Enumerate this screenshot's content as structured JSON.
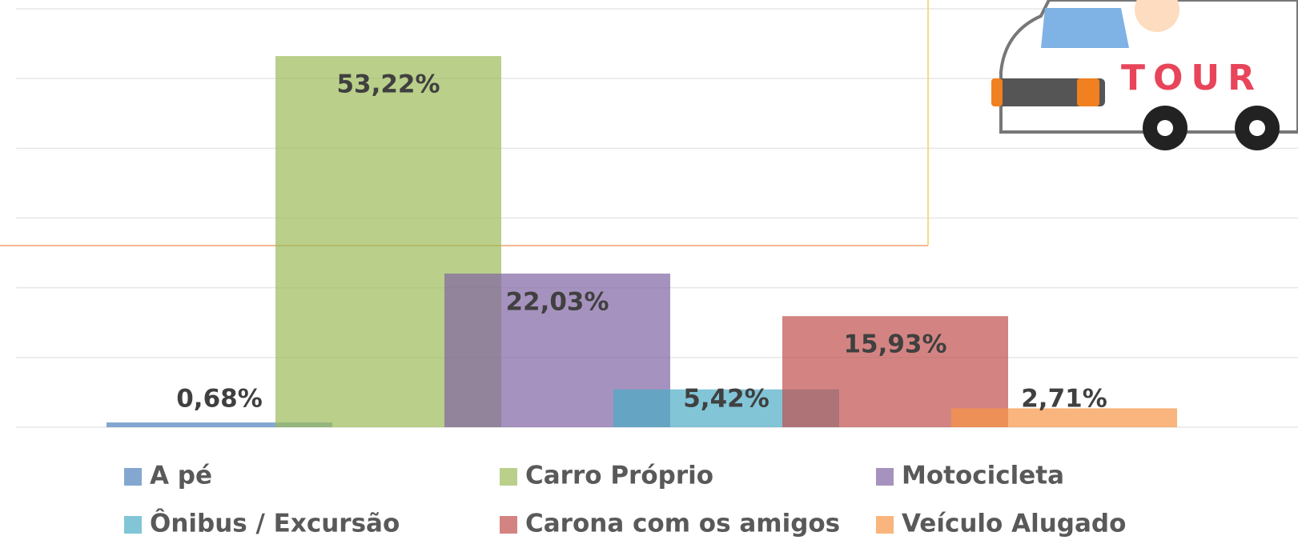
{
  "chart_data": {
    "type": "bar",
    "categories": [
      "A pé",
      "Carro Próprio",
      "Motocicleta",
      "Ônibus / Excursão",
      "Carona com os amigos",
      "Veículo Alugado"
    ],
    "values": [
      0.68,
      53.22,
      22.03,
      5.42,
      15.93,
      2.71
    ],
    "value_labels": [
      "0,68%",
      "53,22%",
      "22,03%",
      "5,42%",
      "15,93%",
      "2,71%"
    ],
    "colors": [
      "#4f81bd",
      "#9bbb59",
      "#8064a2",
      "#4bacc6",
      "#c0504d",
      "#f79646"
    ],
    "ylim": [
      0,
      60
    ],
    "yticks": [
      0,
      10,
      20,
      30,
      40,
      50,
      60
    ],
    "grid": true,
    "legend": "bottom"
  },
  "illustration_text": "TOUR"
}
